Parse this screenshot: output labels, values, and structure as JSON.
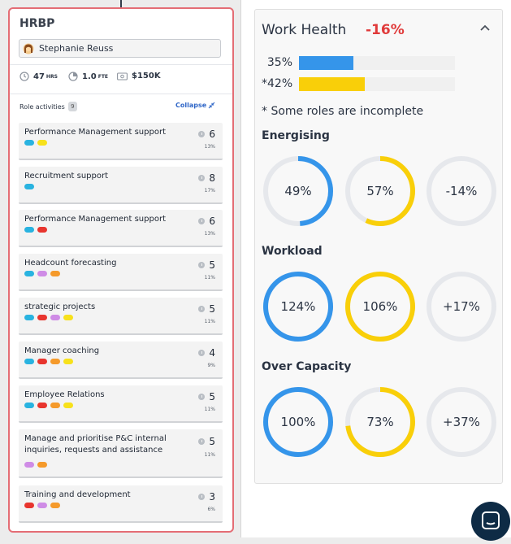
{
  "role_card": {
    "title": "HRBP",
    "person": "Stephanie Reuss",
    "stats": {
      "hours_value": "47",
      "hours_unit": "HRS",
      "fte_value": "1.0",
      "fte_unit": "FTE",
      "salary": "$150K"
    },
    "role_activities_label": "Role activities",
    "role_activities_count": "9",
    "collapse_label": "Collapse",
    "activities": [
      {
        "title": "Performance Management support",
        "hours": "6",
        "pct": "13%",
        "tags": [
          "blue",
          "yellow"
        ]
      },
      {
        "title": "Recruitment support",
        "hours": "8",
        "pct": "17%",
        "tags": [
          "blue"
        ]
      },
      {
        "title": "Performance Management support",
        "hours": "6",
        "pct": "13%",
        "tags": [
          "blue",
          "red"
        ]
      },
      {
        "title": "Headcount forecasting",
        "hours": "5",
        "pct": "11%",
        "tags": [
          "blue",
          "purple",
          "orange"
        ]
      },
      {
        "title": "strategic projects",
        "hours": "5",
        "pct": "11%",
        "tags": [
          "blue",
          "red",
          "purple",
          "yellow"
        ]
      },
      {
        "title": "Manager coaching",
        "hours": "4",
        "pct": "9%",
        "tags": [
          "blue",
          "red",
          "orange",
          "yellow"
        ]
      },
      {
        "title": "Employee Relations",
        "hours": "5",
        "pct": "11%",
        "tags": [
          "blue",
          "red",
          "orange",
          "yellow"
        ]
      },
      {
        "title": "Manage and prioritise P&C internal inquiries, requests and assistance",
        "hours": "5",
        "pct": "11%",
        "tags": [
          "purple",
          "orange"
        ]
      },
      {
        "title": "Training and development",
        "hours": "3",
        "pct": "6%",
        "tags": [
          "red",
          "purple",
          "orange"
        ]
      }
    ],
    "tag_colors": {
      "blue": "#29b3e0",
      "yellow": "#f7e11b",
      "red": "#e8352e",
      "purple": "#cf8ce6",
      "orange": "#f59a2b"
    }
  },
  "work_health": {
    "title": "Work Health",
    "delta": "-16%",
    "bars": [
      {
        "label": "35%",
        "value": 35,
        "color": "#3595ea"
      },
      {
        "label": "*42%",
        "value": 42,
        "color": "#f9cf09"
      }
    ],
    "note": "* Some roles are incomplete",
    "sections": [
      {
        "title": "Energising",
        "rings": [
          {
            "label": "49%",
            "value": 49,
            "color": "#3595ea"
          },
          {
            "label": "57%",
            "value": 57,
            "color": "#f9cf09"
          },
          {
            "label": "-14%",
            "value": 0,
            "color": "#e6e8ec"
          }
        ]
      },
      {
        "title": "Workload",
        "rings": [
          {
            "label": "124%",
            "value": 100,
            "color": "#3595ea"
          },
          {
            "label": "106%",
            "value": 100,
            "color": "#f9cf09"
          },
          {
            "label": "+17%",
            "value": 0,
            "color": "#e6e8ec"
          }
        ]
      },
      {
        "title": "Over Capacity",
        "rings": [
          {
            "label": "100%",
            "value": 100,
            "color": "#3595ea"
          },
          {
            "label": "73%",
            "value": 73,
            "color": "#f9cf09"
          },
          {
            "label": "+37%",
            "value": 0,
            "color": "#e6e8ec"
          }
        ]
      }
    ],
    "track_color": "#e6e8ec"
  },
  "chat_launcher": {
    "icon": "chat-icon"
  }
}
